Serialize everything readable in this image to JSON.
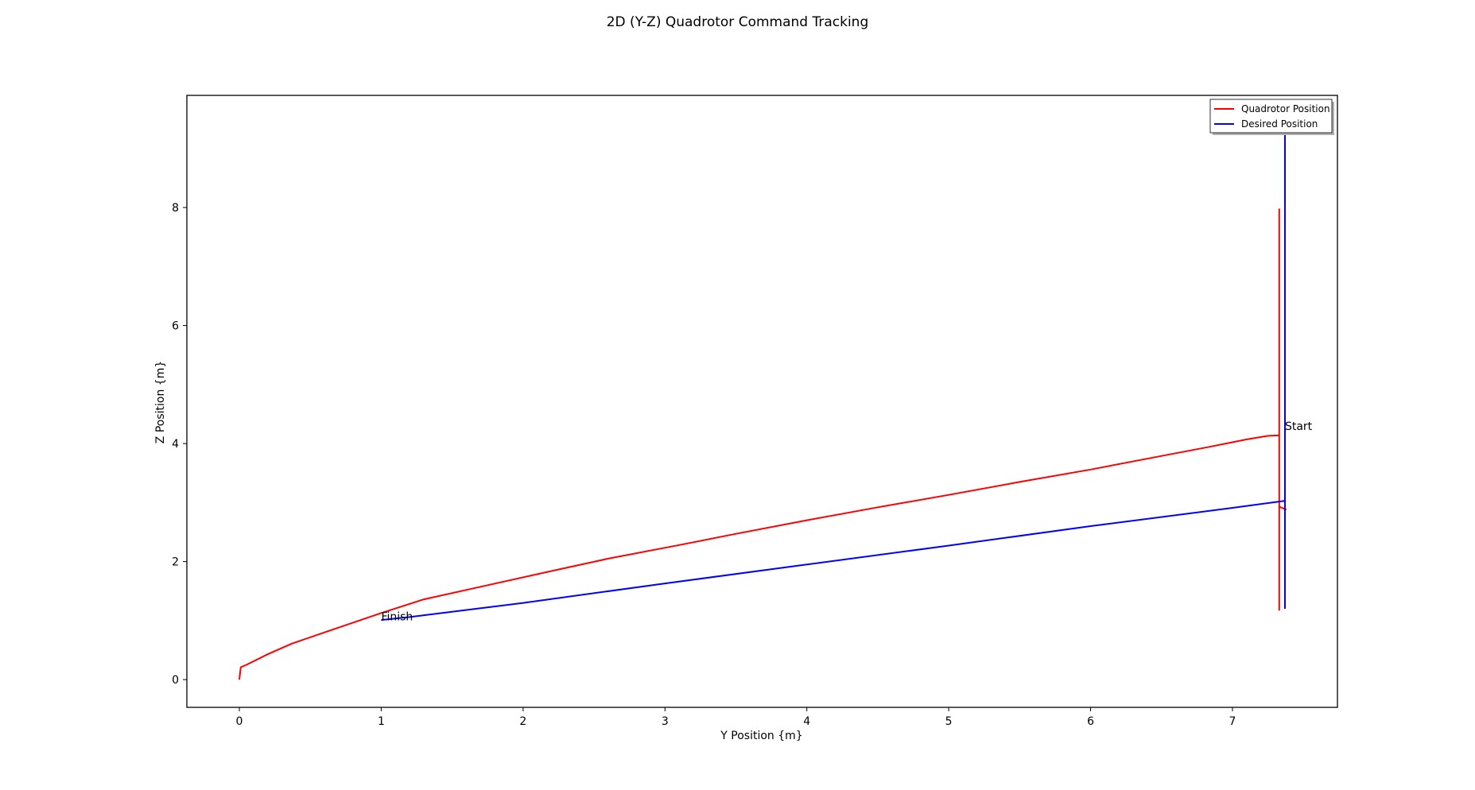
{
  "chart_data": {
    "type": "line",
    "title": "2D (Y-Z) Quadrotor Command Tracking",
    "xlabel": "Y Position {m}",
    "ylabel": "Z Position {m}",
    "xlim": [
      -0.37,
      7.74
    ],
    "ylim": [
      -0.47,
      9.9
    ],
    "xticks": [
      0,
      1,
      2,
      3,
      4,
      5,
      6,
      7
    ],
    "yticks": [
      0,
      2,
      4,
      6,
      8
    ],
    "grid": false,
    "legend": {
      "placement": "top-right"
    },
    "series": [
      {
        "name": "Quadrotor Position",
        "color": "#ff0000",
        "x": [
          0.0,
          0.01,
          0.05,
          0.2,
          0.37,
          0.6,
          0.99,
          1.3,
          1.75,
          2.2,
          2.6,
          3.1,
          3.5,
          4.0,
          4.5,
          5.0,
          5.5,
          6.0,
          6.5,
          6.85,
          7.1,
          7.25,
          7.33,
          7.33,
          7.33,
          7.33,
          7.38
        ],
        "y": [
          0.0,
          0.21,
          0.25,
          0.43,
          0.61,
          0.8,
          1.12,
          1.36,
          1.6,
          1.84,
          2.05,
          2.28,
          2.47,
          2.7,
          2.92,
          3.13,
          3.35,
          3.56,
          3.79,
          3.95,
          4.07,
          4.13,
          4.14,
          7.97,
          1.18,
          2.93,
          2.88
        ]
      },
      {
        "name": "Desired Position",
        "color": "#0000ff",
        "x": [
          1.0,
          1.2,
          2.0,
          3.0,
          4.0,
          5.0,
          6.0,
          7.0,
          7.37,
          7.37,
          7.37
        ],
        "y": [
          1.01,
          1.06,
          1.3,
          1.63,
          1.95,
          2.27,
          2.6,
          2.91,
          3.03,
          9.4,
          1.2
        ]
      }
    ],
    "annotations": [
      {
        "text": "Start",
        "x": 7.37,
        "y": 4.3
      },
      {
        "text": "Finish",
        "x": 1.0,
        "y": 1.07
      }
    ]
  }
}
